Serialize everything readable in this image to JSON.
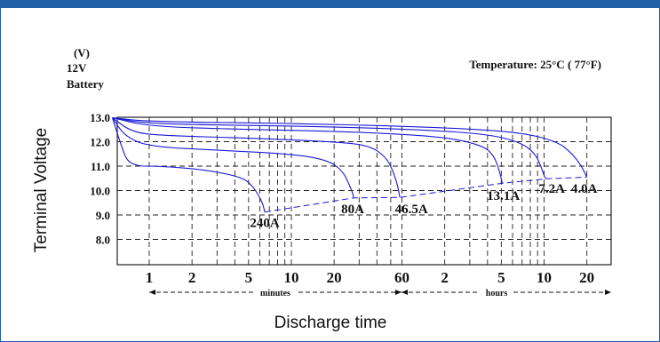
{
  "chart_data": {
    "type": "line",
    "title": "",
    "ylabel": "Terminal Voltage",
    "xlabel": "Discharge time",
    "y_unit": "(V)",
    "battery_lines": [
      "12V",
      "Battery"
    ],
    "temperature": "Temperature: 25°C ( 77°F)",
    "ylim": [
      7.0,
      13.0
    ],
    "x_scale": "log",
    "x_unit": "minutes",
    "xlim": [
      0.55,
      1500
    ],
    "y_ticks": [
      "13.0",
      "12.0",
      "11.0",
      "10.0",
      "9.0",
      "8.0"
    ],
    "x_ticks": [
      {
        "label": "1",
        "minutes": 1
      },
      {
        "label": "2",
        "minutes": 2
      },
      {
        "label": "5",
        "minutes": 5
      },
      {
        "label": "10",
        "minutes": 10
      },
      {
        "label": "20",
        "minutes": 20
      },
      {
        "label": "60",
        "minutes": 60
      },
      {
        "label": "2",
        "minutes": 120
      },
      {
        "label": "5",
        "minutes": 300
      },
      {
        "label": "10",
        "minutes": 600
      },
      {
        "label": "20",
        "minutes": 1200
      }
    ],
    "x_range_labels": {
      "minutes": "minutes",
      "hours": "hours"
    },
    "grid": true,
    "series": [
      {
        "name": "240A",
        "points": [
          [
            0.55,
            12.98
          ],
          [
            0.63,
            11.9
          ],
          [
            0.72,
            11.0
          ],
          [
            1.2,
            11.0
          ],
          [
            2.5,
            10.85
          ],
          [
            4.5,
            10.55
          ],
          [
            5.3,
            10.2
          ],
          [
            5.9,
            9.8
          ],
          [
            6.3,
            9.45
          ],
          [
            6.5,
            9.12
          ]
        ]
      },
      {
        "name": "80A",
        "points": [
          [
            0.55,
            12.98
          ],
          [
            0.68,
            12.2
          ],
          [
            1,
            11.8
          ],
          [
            3,
            11.65
          ],
          [
            10,
            11.5
          ],
          [
            18,
            11.25
          ],
          [
            23,
            10.8
          ],
          [
            25.5,
            10.25
          ],
          [
            26.8,
            9.95
          ],
          [
            27.5,
            9.7
          ]
        ]
      },
      {
        "name": "46.5A",
        "points": [
          [
            0.55,
            12.98
          ],
          [
            0.75,
            12.4
          ],
          [
            1.2,
            12.25
          ],
          [
            5,
            12.15
          ],
          [
            20,
            12.0
          ],
          [
            35,
            11.85
          ],
          [
            46,
            11.4
          ],
          [
            52,
            10.8
          ],
          [
            56,
            10.2
          ],
          [
            58,
            9.72
          ]
        ]
      },
      {
        "name": "13.1A",
        "points": [
          [
            0.55,
            12.98
          ],
          [
            1,
            12.62
          ],
          [
            5,
            12.5
          ],
          [
            30,
            12.4
          ],
          [
            120,
            12.2
          ],
          [
            220,
            11.85
          ],
          [
            265,
            11.45
          ],
          [
            290,
            10.85
          ],
          [
            305,
            10.3
          ]
        ]
      },
      {
        "name": "7.2A",
        "points": [
          [
            0.55,
            12.98
          ],
          [
            1,
            12.72
          ],
          [
            10,
            12.65
          ],
          [
            80,
            12.5
          ],
          [
            250,
            12.3
          ],
          [
            420,
            11.95
          ],
          [
            520,
            11.5
          ],
          [
            570,
            11.0
          ],
          [
            605,
            10.55
          ],
          [
            620,
            10.48
          ]
        ]
      },
      {
        "name": "4.0A",
        "points": [
          [
            0.55,
            12.98
          ],
          [
            1,
            12.82
          ],
          [
            10,
            12.75
          ],
          [
            100,
            12.6
          ],
          [
            400,
            12.4
          ],
          [
            750,
            12.0
          ],
          [
            950,
            11.5
          ],
          [
            1100,
            11.0
          ],
          [
            1200,
            10.55
          ]
        ]
      }
    ],
    "cutoff_line": {
      "style": "dashed",
      "points": [
        [
          6.5,
          9.12
        ],
        [
          27.5,
          9.7
        ],
        [
          58,
          9.72
        ],
        [
          305,
          10.3
        ],
        [
          620,
          10.48
        ],
        [
          1200,
          10.55
        ]
      ]
    },
    "annotations": [
      {
        "text": "240A",
        "x": 6.5,
        "y": 8.7
      },
      {
        "text": "80A",
        "x": 27,
        "y": 9.25
      },
      {
        "text": "46.5A",
        "x": 70,
        "y": 9.25
      },
      {
        "text": "13.1A",
        "x": 310,
        "y": 9.8
      },
      {
        "text": "7.2A",
        "x": 680,
        "y": 10.1
      },
      {
        "text": "4.0A",
        "x": 1150,
        "y": 10.1
      }
    ],
    "colors": {
      "curve": "#1a1ad6",
      "grid": "#222222",
      "frame": "#1f5fa6"
    }
  }
}
